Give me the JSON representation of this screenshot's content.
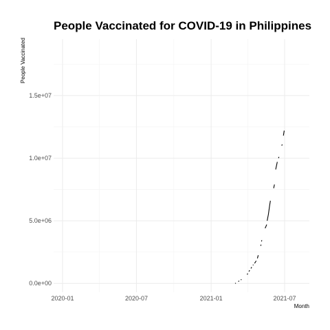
{
  "chart_data": {
    "type": "line",
    "title": "People Vaccinated for COVID-19 in Philippines",
    "xlabel": "Month",
    "ylabel": "People Vaccinated",
    "x_ticks": [
      {
        "label": "2020-01",
        "value": "2020-01-01"
      },
      {
        "label": "2020-07",
        "value": "2020-07-01"
      },
      {
        "label": "2021-01",
        "value": "2021-01-01"
      },
      {
        "label": "2021-07",
        "value": "2021-07-01"
      }
    ],
    "y_ticks": [
      {
        "label": "0.0e+00",
        "value": 0
      },
      {
        "label": "5.0e+06",
        "value": 5000000
      },
      {
        "label": "1.0e+07",
        "value": 10000000
      },
      {
        "label": "1.5e+07",
        "value": 15000000
      }
    ],
    "xlim": [
      "2019-12-10",
      "2021-08-31"
    ],
    "ylim": [
      -700000,
      19500000
    ],
    "grid": true,
    "series": [
      {
        "segments": [
          [
            [
              "2021-03-01",
              0
            ],
            [
              "2021-03-03",
              20000
            ]
          ],
          [
            [
              "2021-03-09",
              150000
            ],
            [
              "2021-03-11",
              200000
            ]
          ],
          [
            [
              "2021-03-16",
              300000
            ]
          ],
          [
            [
              "2021-03-31",
              700000
            ],
            [
              "2021-04-01",
              800000
            ]
          ],
          [
            [
              "2021-04-04",
              950000
            ],
            [
              "2021-04-06",
              1050000
            ]
          ],
          [
            [
              "2021-04-09",
              1200000
            ],
            [
              "2021-04-11",
              1300000
            ]
          ],
          [
            [
              "2021-04-14",
              1450000
            ],
            [
              "2021-04-15",
              1500000
            ]
          ],
          [
            [
              "2021-04-18",
              1600000
            ],
            [
              "2021-04-22",
              1800000
            ]
          ],
          [
            [
              "2021-04-25",
              2000000
            ],
            [
              "2021-04-27",
              2250000
            ]
          ],
          [
            [
              "2021-05-03",
              3000000
            ],
            [
              "2021-05-04",
              3100000
            ]
          ],
          [
            [
              "2021-05-05",
              3350000
            ],
            [
              "2021-05-06",
              3450000
            ]
          ],
          [
            [
              "2021-05-14",
              4400000
            ],
            [
              "2021-05-18",
              4700000
            ]
          ],
          [
            [
              "2021-05-19",
              5000000
            ],
            [
              "2021-05-22",
              5500000
            ],
            [
              "2021-05-25",
              6200000
            ],
            [
              "2021-05-27",
              6600000
            ]
          ],
          [
            [
              "2021-06-04",
              7600000
            ],
            [
              "2021-06-06",
              7900000
            ]
          ],
          [
            [
              "2021-06-09",
              9100000
            ],
            [
              "2021-06-11",
              9400000
            ],
            [
              "2021-06-13",
              9700000
            ]
          ],
          [
            [
              "2021-06-16",
              10000000
            ],
            [
              "2021-06-17",
              10100000
            ]
          ],
          [
            [
              "2021-06-24",
              11000000
            ],
            [
              "2021-06-25",
              11100000
            ]
          ],
          [
            [
              "2021-06-28",
              11800000
            ],
            [
              "2021-06-30",
              12200000
            ]
          ]
        ]
      }
    ]
  }
}
